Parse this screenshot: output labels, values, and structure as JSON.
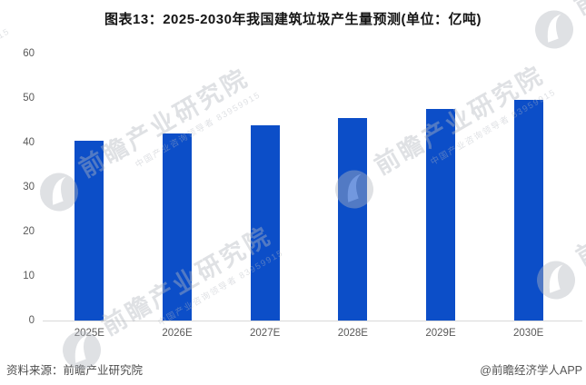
{
  "header": {
    "title": "图表13：2025-2030年我国建筑垃圾产生量预测(单位：亿吨)"
  },
  "chart_data": {
    "type": "bar",
    "title": "2025-2030年我国建筑垃圾产生量预测",
    "unit_label": "亿吨",
    "categories": [
      "2025E",
      "2026E",
      "2027E",
      "2028E",
      "2029E",
      "2030E"
    ],
    "values": [
      40.4,
      42.0,
      43.9,
      45.6,
      47.6,
      49.6
    ],
    "ylim": [
      0,
      60
    ],
    "yticks": [
      0,
      10,
      20,
      30,
      40,
      50,
      60
    ],
    "bar_color": "#0c4ec8",
    "axis_line_color": "#d9d9d9",
    "tick_label_color": "#595959",
    "grid": false,
    "legend": false
  },
  "watermark": {
    "main": "前瞻产业研究院",
    "sub": "中国产业咨询领导者 83959915",
    "logo": "qianzhan-leaf-logo"
  },
  "footer": {
    "source": "资料来源：前瞻产业研究院",
    "credit": "@前瞻经济学人APP"
  }
}
